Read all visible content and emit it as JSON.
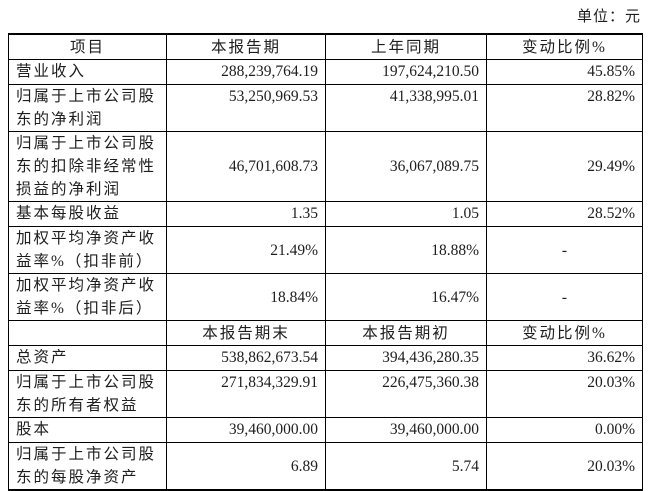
{
  "unit_label": "单位：元",
  "colors": {
    "background": "#ffffff",
    "text": "#1d1d1d",
    "border": "#000000"
  },
  "table": {
    "sections": [
      {
        "header": [
          "项目",
          "本报告期",
          "上年同期",
          "变动比例%"
        ],
        "rows": [
          {
            "label": "营业收入",
            "current": "288,239,764.19",
            "prior": "197,624,210.50",
            "change": "45.85%"
          },
          {
            "label": "归属于上市公司股东的净利润",
            "current": "53,250,969.53",
            "prior": "41,338,995.01",
            "change": "28.82%"
          },
          {
            "label": "归属于上市公司股东的扣除非经常性损益的净利润",
            "current": "46,701,608.73",
            "prior": "36,067,089.75",
            "change": "29.49%"
          },
          {
            "label": "基本每股收益",
            "current": "1.35",
            "prior": "1.05",
            "change": "28.52%"
          },
          {
            "label": "加权平均净资产收益率%（扣非前）",
            "current": "21.49%",
            "prior": "18.88%",
            "change": "-"
          },
          {
            "label": "加权平均净资产收益率%（扣非后）",
            "current": "18.84%",
            "prior": "16.47%",
            "change": "-"
          }
        ]
      },
      {
        "header": [
          "",
          "本报告期末",
          "本报告期初",
          "变动比例%"
        ],
        "rows": [
          {
            "label": "总资产",
            "current": "538,862,673.54",
            "prior": "394,436,280.35",
            "change": "36.62%"
          },
          {
            "label": "归属于上市公司股东的所有者权益",
            "current": "271,834,329.91",
            "prior": "226,475,360.38",
            "change": "20.03%"
          },
          {
            "label": "股本",
            "current": "39,460,000.00",
            "prior": "39,460,000.00",
            "change": "0.00%"
          },
          {
            "label": "归属于上市公司股东的每股净资产",
            "current": "6.89",
            "prior": "5.74",
            "change": "20.03%"
          }
        ]
      }
    ]
  }
}
